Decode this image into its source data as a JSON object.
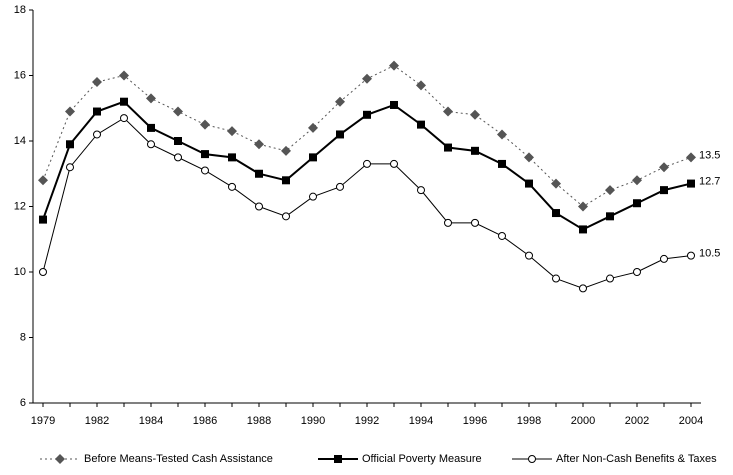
{
  "chart_data": {
    "type": "line",
    "categories": [
      "1979",
      null,
      "1982",
      null,
      "1984",
      null,
      "1986",
      null,
      "1988",
      null,
      "1990",
      null,
      "1992",
      null,
      "1994",
      null,
      "1996",
      null,
      "1998",
      null,
      "2000",
      null,
      "2002",
      null,
      "2004"
    ],
    "series": [
      {
        "name": "Before Means-Tested Cash Assistance",
        "color": "#555555",
        "line_style": "dotted",
        "marker": "diamond",
        "values": [
          12.8,
          14.9,
          15.8,
          16.0,
          15.3,
          14.9,
          14.5,
          14.3,
          13.9,
          13.7,
          14.4,
          15.2,
          15.9,
          16.3,
          15.7,
          14.9,
          14.8,
          14.2,
          13.5,
          12.7,
          12.0,
          12.5,
          12.8,
          13.2,
          13.5
        ]
      },
      {
        "name": "Official Poverty Measure",
        "color": "#000000",
        "line_style": "solid-thick",
        "marker": "square",
        "values": [
          11.6,
          13.9,
          14.9,
          15.2,
          14.4,
          14.0,
          13.6,
          13.5,
          13.0,
          12.8,
          13.5,
          14.2,
          14.8,
          15.1,
          14.5,
          13.8,
          13.7,
          13.3,
          12.7,
          11.8,
          11.3,
          11.7,
          12.1,
          12.5,
          12.7
        ]
      },
      {
        "name": "After Non-Cash Benefits & Taxes",
        "color": "#000000",
        "line_style": "solid-thin",
        "marker": "circle",
        "values": [
          10.0,
          13.2,
          14.2,
          14.7,
          13.9,
          13.5,
          13.1,
          12.6,
          12.0,
          11.7,
          12.3,
          12.6,
          13.3,
          13.3,
          12.5,
          11.5,
          11.5,
          11.1,
          10.5,
          9.8,
          9.5,
          9.8,
          10.0,
          10.4,
          10.5
        ]
      }
    ],
    "ylim": [
      6,
      18
    ],
    "yticks": [
      6,
      8,
      10,
      12,
      14,
      16,
      18
    ],
    "grid": false,
    "legend": "bottom"
  }
}
